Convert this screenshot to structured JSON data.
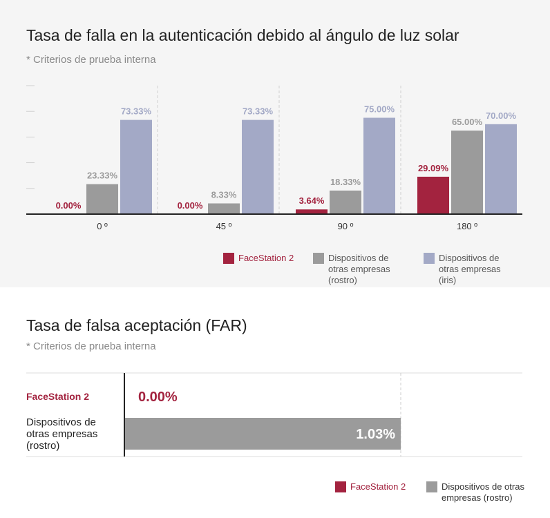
{
  "colors": {
    "facestation": "#a3233f",
    "others_face": "#9b9b9b",
    "others_iris": "#a3a9c6",
    "panel_bg": "#f5f5f5"
  },
  "section1": {
    "title": "Tasa de falla en la autenticación debido al ángulo de luz solar",
    "subtitle": "* Criterios de prueba interna"
  },
  "section2": {
    "title": "Tasa de falsa aceptación (FAR)",
    "subtitle": "* Criterios de prueba interna"
  },
  "chart_data": [
    {
      "type": "bar",
      "title": "Tasa de falla en la autenticación debido al ángulo de luz solar",
      "subtitle": "* Criterios de prueba interna",
      "categories": [
        "0 º",
        "45 º",
        "90 º",
        "180 º"
      ],
      "ylim": [
        0,
        100
      ],
      "grid": false,
      "legend_position": "bottom-right",
      "series": [
        {
          "name": "FaceStation 2",
          "values": [
            0.0,
            0.0,
            3.64,
            29.09
          ],
          "labels": [
            "0.00%",
            "0.00%",
            "3.64%",
            "29.09%"
          ],
          "color": "#a3233f"
        },
        {
          "name": "Dispositivos de\notras empresas\n(rostro)",
          "values": [
            23.33,
            8.33,
            18.33,
            65.0
          ],
          "labels": [
            "23.33%",
            "8.33%",
            "18.33%",
            "65.00%"
          ],
          "color": "#9b9b9b"
        },
        {
          "name": "Dispositivos de\notras empresas\n(iris)",
          "values": [
            73.33,
            73.33,
            75.0,
            70.0
          ],
          "labels": [
            "73.33%",
            "73.33%",
            "75.00%",
            "70.00%"
          ],
          "color": "#a3a9c6"
        }
      ]
    },
    {
      "type": "bar",
      "orientation": "horizontal",
      "title": "Tasa de falsa aceptación (FAR)",
      "subtitle": "* Criterios de prueba interna",
      "categories": [
        "FaceStation 2",
        "Dispositivos de\notras empresas\n(rostro)"
      ],
      "values": [
        0.0,
        1.03
      ],
      "labels": [
        "0.00%",
        "1.03%"
      ],
      "colors": [
        "#a3233f",
        "#9b9b9b"
      ],
      "xlim": [
        0,
        1.43
      ],
      "legend_position": "bottom-right",
      "legend": [
        {
          "name": "FaceStation 2",
          "color": "#a3233f"
        },
        {
          "name": "Dispositivos de otras\nempresas (rostro)",
          "color": "#9b9b9b"
        }
      ]
    }
  ]
}
